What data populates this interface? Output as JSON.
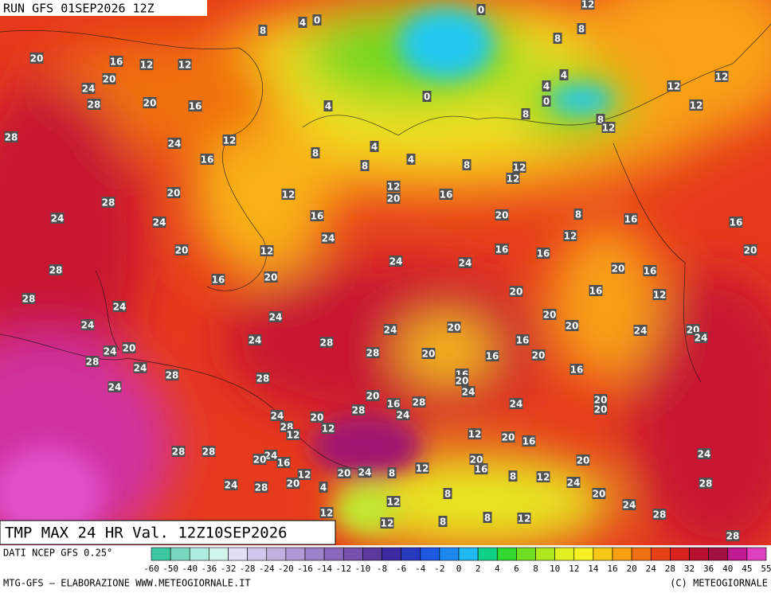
{
  "header": {
    "title": "RUN GFS 01SEP2026 12Z"
  },
  "map_title": "TMP MAX 24 HR Val. 12Z10SEP2026",
  "map_labels": [
    4,
    0,
    0,
    12,
    8,
    8,
    8,
    20,
    16,
    12,
    12,
    20,
    24,
    28,
    20,
    16,
    4,
    0,
    4,
    4,
    0,
    8,
    8,
    12,
    12,
    12,
    12,
    28,
    24,
    12,
    8,
    4,
    8,
    4,
    8,
    12,
    12,
    16,
    20,
    12,
    12,
    20,
    16,
    28,
    24,
    24,
    16,
    20,
    8,
    16,
    16,
    24,
    20,
    12,
    12,
    16,
    16,
    20,
    24,
    24,
    28,
    16,
    20,
    20,
    16,
    28,
    24,
    20,
    16,
    12,
    24,
    24,
    24,
    20,
    20,
    20,
    24,
    20,
    24,
    24,
    28,
    20,
    24,
    28,
    20,
    16,
    16,
    20,
    28,
    24,
    16,
    16,
    20,
    28,
    28,
    24,
    24,
    20,
    16,
    28,
    20,
    20,
    24,
    24,
    28,
    24,
    20,
    28,
    12,
    12,
    12,
    20,
    16,
    28,
    28,
    24,
    20,
    16,
    24,
    20,
    20,
    16,
    24,
    20,
    8,
    12,
    12,
    8,
    12,
    24,
    28,
    24,
    28,
    20,
    4,
    8,
    20,
    12,
    24,
    28,
    12,
    12,
    8,
    8,
    12,
    28
  ],
  "legend": {
    "source": "DATI NCEP GFS 0.25°",
    "labels": [
      -60,
      -50,
      -40,
      -36,
      -32,
      -28,
      -24,
      -20,
      -16,
      -14,
      -12,
      -10,
      -8,
      -6,
      -4,
      -2,
      0,
      2,
      4,
      6,
      8,
      10,
      12,
      14,
      16,
      20,
      24,
      28,
      32,
      36,
      40,
      45,
      55
    ],
    "colors": [
      "#3cc8a0",
      "#7ad8c0",
      "#b0ece0",
      "#d0f4ec",
      "#e0e0f4",
      "#d0c8ec",
      "#c0b0e0",
      "#b098d4",
      "#9c80c8",
      "#8a68bc",
      "#7450ac",
      "#5a389c",
      "#3c28a0",
      "#2838c0",
      "#1c58e0",
      "#1c88f0",
      "#20b8f0",
      "#10d088",
      "#30d830",
      "#70e020",
      "#b0e820",
      "#e0f020",
      "#f8f020",
      "#f8c818",
      "#f8a010",
      "#f07010",
      "#e84018",
      "#d82020",
      "#b81030",
      "#a01040",
      "#c01890",
      "#e040c0"
    ]
  },
  "footer": {
    "credit": "MTG-GFS — ELABORAZIONE WWW.METEOGIORNALE.IT",
    "copyright": "(C) METEOGIORNALE"
  }
}
